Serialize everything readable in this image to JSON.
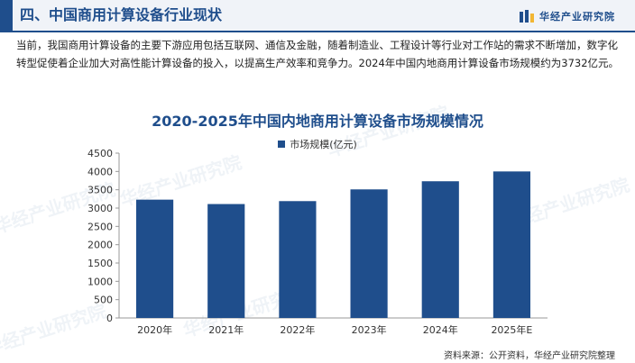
{
  "header": {
    "title": "四、中国商用计算设备行业现状",
    "brand": "华经产业研究院",
    "brand_logo_icon": "hj-logo-icon"
  },
  "intro": "当前，我国商用计算设备的主要下游应用包括互联网、通信及金融，随着制造业、工程设计等行业对工作站的需求不断增加，数字化转型促使着企业加大对高性能计算设备的投入，以提高生产效率和竞争力。2024年中国内地商用计算设备市场规模约为3732亿元。",
  "watermark": "华经产业研究院",
  "chart_data": {
    "type": "bar",
    "title": "2020-2025年中国内地商用计算设备市场规模情况",
    "categories": [
      "2020年",
      "2021年",
      "2022年",
      "2023年",
      "2024年",
      "2025年E"
    ],
    "series": [
      {
        "name": "市场规模(亿元)",
        "values": [
          3230,
          3110,
          3190,
          3510,
          3732,
          4000
        ],
        "color": "#1f4e8c"
      }
    ],
    "ylim": [
      0,
      4500
    ],
    "yticks": [
      0,
      500,
      1000,
      1500,
      2000,
      2500,
      3000,
      3500,
      4000,
      4500
    ],
    "grid": false,
    "legend": "top-center"
  },
  "source": "资料来源：公开资料，华经产业研究院整理"
}
